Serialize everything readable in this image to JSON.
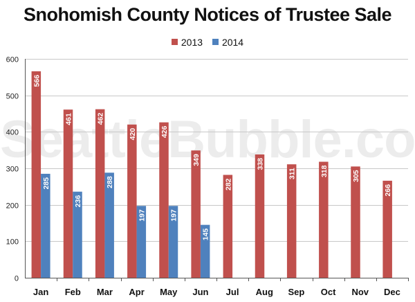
{
  "chart_data": {
    "type": "bar",
    "title": "Snohomish County Notices of Trustee Sale",
    "categories": [
      "Jan",
      "Feb",
      "Mar",
      "Apr",
      "May",
      "Jun",
      "Jul",
      "Aug",
      "Sep",
      "Oct",
      "Nov",
      "Dec"
    ],
    "series": [
      {
        "name": "2013",
        "color": "#c0504d",
        "values": [
          566,
          461,
          462,
          420,
          426,
          349,
          282,
          338,
          311,
          318,
          305,
          266
        ],
        "data_labels": [
          "566",
          "461",
          "462",
          "420",
          "426",
          "349",
          "282",
          "338",
          "311",
          "318",
          "305",
          "266"
        ]
      },
      {
        "name": "2014",
        "color": "#4f81bd",
        "values": [
          285,
          236,
          288,
          197,
          197,
          145,
          null,
          null,
          null,
          null,
          null,
          null
        ],
        "data_labels": [
          "285",
          "236",
          "288",
          "197",
          "197",
          "145",
          "",
          "",
          "",
          "",
          "",
          ""
        ]
      }
    ],
    "ylim": [
      0,
      600
    ],
    "yticks": [
      0,
      100,
      200,
      300,
      400,
      500,
      600
    ],
    "ytick_labels": [
      "0",
      "100",
      "200",
      "300",
      "400",
      "500",
      "600"
    ],
    "grid": true,
    "legend_position": "top-center",
    "xlabel": "",
    "ylabel": ""
  },
  "watermark": "SeattleBubble.com"
}
